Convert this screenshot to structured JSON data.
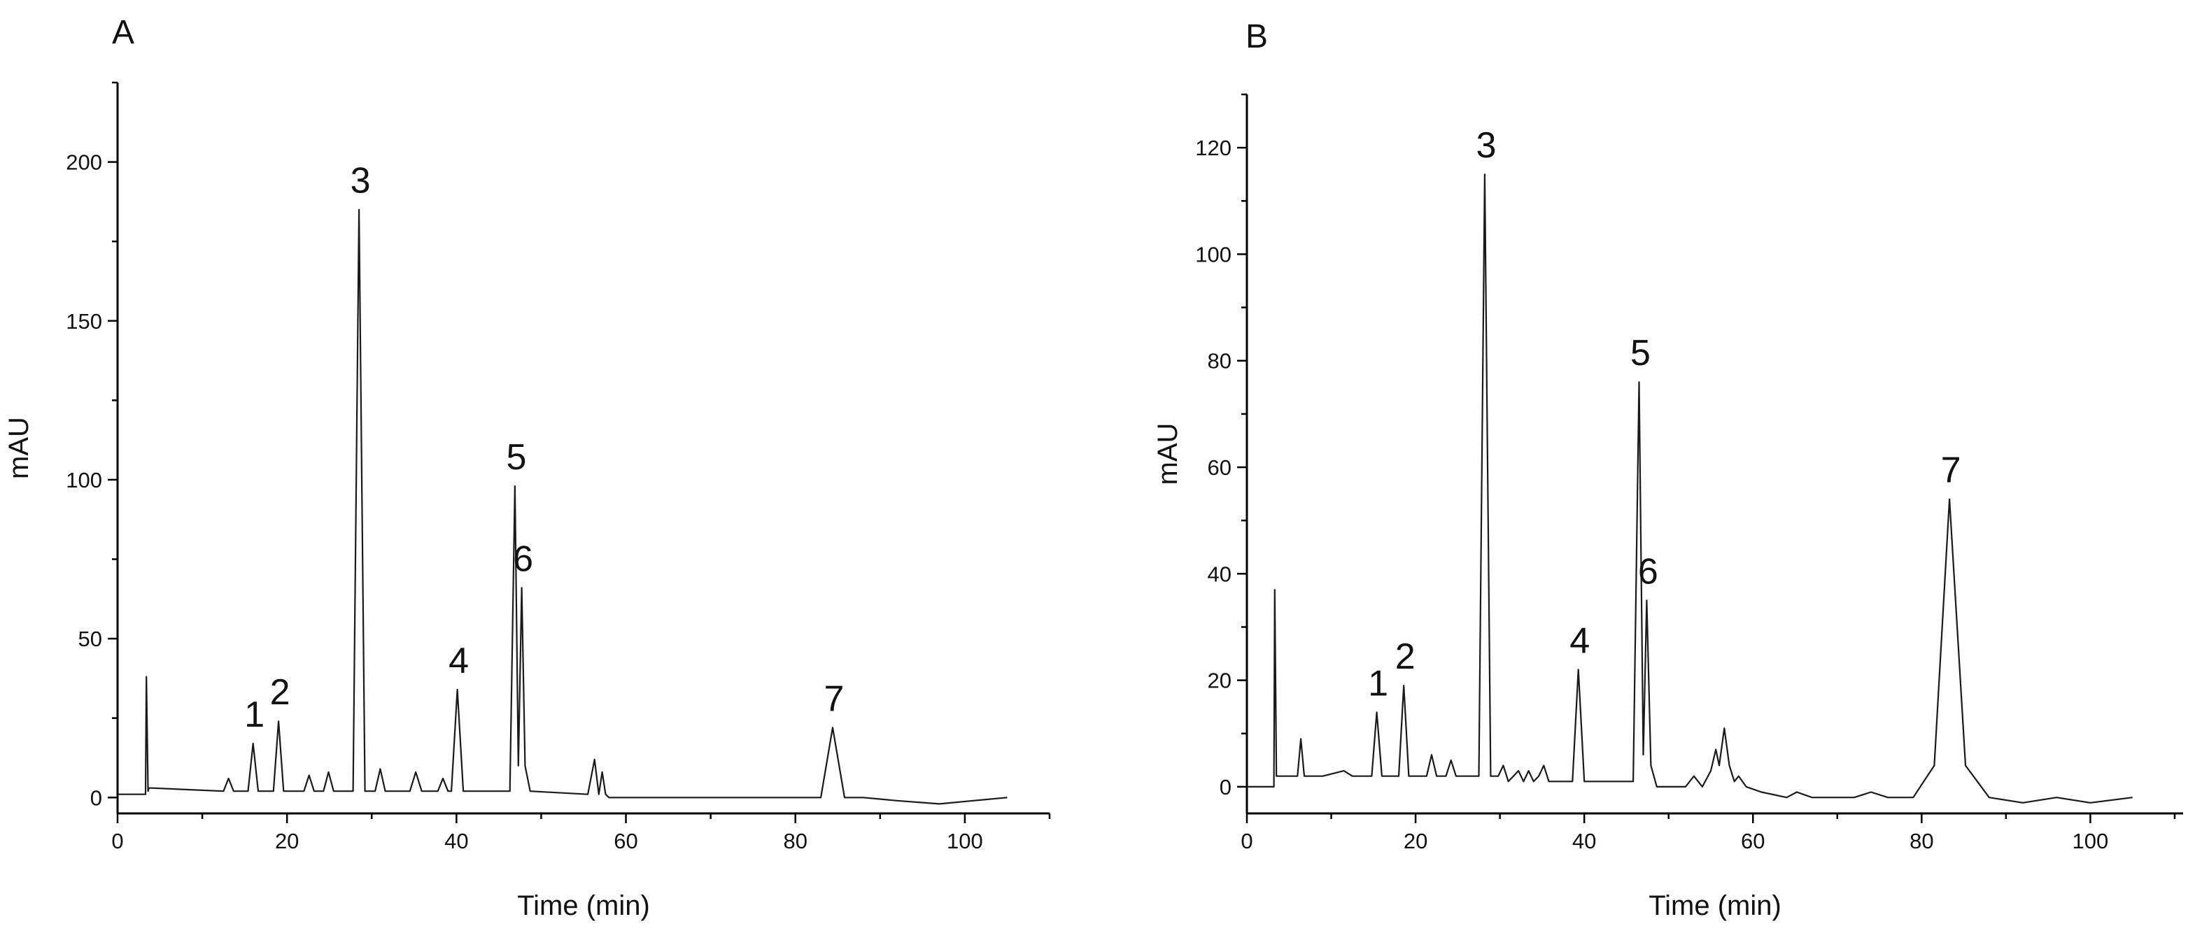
{
  "chart_data": [
    {
      "type": "line",
      "panel_label": "A",
      "xlabel": "Time (min)",
      "ylabel": "mAU",
      "xlim": [
        0,
        110
      ],
      "ylim": [
        -5,
        225
      ],
      "xticks": [
        0,
        20,
        40,
        60,
        80,
        100
      ],
      "yticks": [
        0,
        50,
        100,
        150,
        200
      ],
      "grid": false,
      "series": [
        {
          "x": [
            0,
            3.3,
            3.4,
            3.6,
            3.7,
            4,
            12.5,
            13.1,
            13.7,
            15.4,
            16,
            16.6,
            18.4,
            19,
            19.6,
            22,
            22.6,
            23.2,
            24.3,
            24.9,
            25.5,
            27.8,
            28.5,
            29.2,
            30.4,
            31,
            31.6,
            34.5,
            35.2,
            35.9,
            37.8,
            38.4,
            39,
            39.4,
            40.1,
            40.8,
            46.3,
            46.9,
            47.3,
            47.7,
            48.1,
            48.7,
            55.5,
            56.3,
            56.8,
            57.2,
            57.6,
            58,
            60,
            83,
            84.4,
            85.8,
            88,
            92,
            97,
            101,
            105
          ],
          "y": [
            1,
            1,
            38,
            2,
            3,
            3,
            2,
            6,
            2,
            2,
            17,
            2,
            2,
            24,
            2,
            2,
            7,
            2,
            2,
            8,
            2,
            2,
            185,
            2,
            2,
            9,
            2,
            2,
            8,
            2,
            2,
            6,
            2,
            2,
            34,
            2,
            2,
            98,
            10,
            66,
            10,
            2,
            1,
            12,
            1,
            8,
            1,
            0,
            0,
            0,
            22,
            0,
            0,
            -1,
            -2,
            -1,
            0
          ]
        }
      ],
      "annotations": [
        {
          "text": "1",
          "x": 16,
          "y": 17
        },
        {
          "text": "2",
          "x": 19,
          "y": 24
        },
        {
          "text": "3",
          "x": 28.5,
          "y": 185
        },
        {
          "text": "4",
          "x": 40.1,
          "y": 34
        },
        {
          "text": "5",
          "x": 46.9,
          "y": 98
        },
        {
          "text": "6",
          "x": 47.7,
          "y": 66
        },
        {
          "text": "7",
          "x": 84.4,
          "y": 22
        }
      ]
    },
    {
      "type": "line",
      "panel_label": "B",
      "xlabel": "Time (min)",
      "ylabel": "mAU",
      "xlim": [
        0,
        111
      ],
      "ylim": [
        -5,
        130
      ],
      "xticks": [
        0,
        20,
        40,
        60,
        80,
        100
      ],
      "yticks": [
        0,
        20,
        40,
        60,
        80,
        100,
        120
      ],
      "grid": false,
      "series": [
        {
          "x": [
            0,
            3.2,
            3.3,
            3.5,
            3.7,
            4,
            6,
            6.4,
            6.8,
            9,
            11.5,
            12.5,
            13.5,
            14.8,
            15.4,
            16,
            18,
            18.6,
            19.2,
            21.3,
            21.9,
            22.5,
            23.6,
            24.2,
            24.8,
            27.5,
            28.2,
            28.9,
            29.8,
            30.4,
            31,
            31.6,
            32.2,
            32.8,
            33.4,
            34,
            34.6,
            35.2,
            35.8,
            38.6,
            39.3,
            40,
            42,
            45.8,
            46.5,
            47,
            47.4,
            47.9,
            48.6,
            52,
            53,
            54,
            55,
            55.6,
            56,
            56.6,
            57.2,
            57.8,
            58.3,
            59.2,
            61,
            64,
            65.2,
            67,
            72,
            74,
            76,
            79,
            81.5,
            83.3,
            85.2,
            88,
            92,
            96,
            100,
            105
          ],
          "y": [
            0,
            0,
            37,
            2,
            2,
            2,
            2,
            9,
            2,
            2,
            3,
            2,
            2,
            2,
            14,
            2,
            2,
            19,
            2,
            2,
            6,
            2,
            2,
            5,
            2,
            2,
            115,
            2,
            2,
            4,
            1,
            2,
            3,
            1,
            3,
            1,
            2,
            4,
            1,
            1,
            22,
            1,
            1,
            1,
            76,
            6,
            35,
            4,
            0,
            0,
            2,
            0,
            3,
            7,
            4,
            11,
            4,
            1,
            2,
            0,
            -1,
            -2,
            -1,
            -2,
            -2,
            -1,
            -2,
            -2,
            4,
            54,
            4,
            -2,
            -3,
            -2,
            -3,
            -2
          ]
        }
      ],
      "annotations": [
        {
          "text": "1",
          "x": 15.4,
          "y": 14
        },
        {
          "text": "2",
          "x": 18.6,
          "y": 19
        },
        {
          "text": "3",
          "x": 28.2,
          "y": 115
        },
        {
          "text": "4",
          "x": 39.3,
          "y": 22
        },
        {
          "text": "5",
          "x": 46.5,
          "y": 76
        },
        {
          "text": "6",
          "x": 47.4,
          "y": 35
        },
        {
          "text": "7",
          "x": 83.3,
          "y": 54
        }
      ]
    }
  ]
}
